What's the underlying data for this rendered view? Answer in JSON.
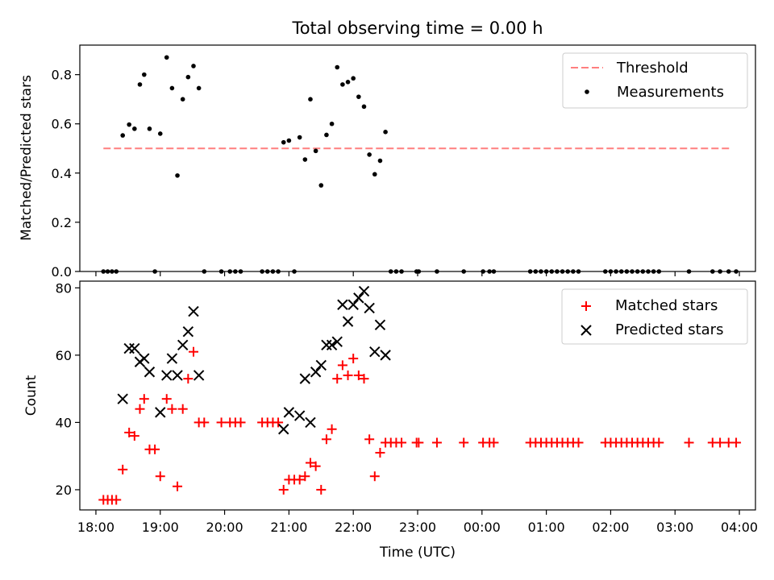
{
  "figure": {
    "title": "Total observing time = 0.00 h"
  },
  "chart_data": [
    {
      "type": "scatter",
      "title": "Total observing time = 0.00 h",
      "xlabel": "",
      "ylabel": "Matched/Predicted stars",
      "xlim": [
        "17:45",
        "04:15"
      ],
      "ylim": [
        0,
        0.92
      ],
      "yticks": [
        0.0,
        0.2,
        0.4,
        0.6,
        0.8
      ],
      "ytick_labels": [
        "0.0",
        "0.2",
        "0.4",
        "0.6",
        "0.8"
      ],
      "grid": false,
      "legend": "top-right",
      "series": [
        {
          "name": "Threshold",
          "kind": "dashed-line",
          "color": "#ff7f7f",
          "points": [
            [
              "18:07",
              0.5
            ],
            [
              "03:53",
              0.5
            ]
          ]
        },
        {
          "name": "Measurements",
          "kind": "dots",
          "color": "#000000",
          "points": [
            [
              "18:07",
              0.0
            ],
            [
              "18:11",
              0.0
            ],
            [
              "18:15",
              0.0
            ],
            [
              "18:19",
              0.0
            ],
            [
              "18:25",
              0.553
            ],
            [
              "18:31",
              0.597
            ],
            [
              "18:36",
              0.58
            ],
            [
              "18:41",
              0.76
            ],
            [
              "18:45",
              0.8
            ],
            [
              "18:50",
              0.58
            ],
            [
              "18:55",
              0.0
            ],
            [
              "19:00",
              0.56
            ],
            [
              "19:06",
              0.87
            ],
            [
              "19:11",
              0.745
            ],
            [
              "19:16",
              0.39
            ],
            [
              "19:21",
              0.7
            ],
            [
              "19:26",
              0.79
            ],
            [
              "19:31",
              0.835
            ],
            [
              "19:36",
              0.745
            ],
            [
              "19:41",
              0.0
            ],
            [
              "19:57",
              0.0
            ],
            [
              "20:05",
              0.0
            ],
            [
              "20:10",
              0.0
            ],
            [
              "20:15",
              0.0
            ],
            [
              "20:35",
              0.0
            ],
            [
              "20:40",
              0.0
            ],
            [
              "20:45",
              0.0
            ],
            [
              "20:50",
              0.0
            ],
            [
              "20:55",
              0.525
            ],
            [
              "21:00",
              0.532
            ],
            [
              "21:05",
              0.0
            ],
            [
              "21:10",
              0.545
            ],
            [
              "21:15",
              0.455
            ],
            [
              "21:20",
              0.7
            ],
            [
              "21:25",
              0.49
            ],
            [
              "21:30",
              0.35
            ],
            [
              "21:35",
              0.555
            ],
            [
              "21:40",
              0.6
            ],
            [
              "21:45",
              0.83
            ],
            [
              "21:50",
              0.76
            ],
            [
              "21:55",
              0.77
            ],
            [
              "22:00",
              0.785
            ],
            [
              "22:05",
              0.71
            ],
            [
              "22:10",
              0.67
            ],
            [
              "22:15",
              0.475
            ],
            [
              "22:20",
              0.395
            ],
            [
              "22:25",
              0.45
            ],
            [
              "22:30",
              0.567
            ],
            [
              "22:35",
              0.0
            ],
            [
              "22:40",
              0.0
            ],
            [
              "22:45",
              0.0
            ],
            [
              "22:59",
              0.0
            ],
            [
              "23:01",
              0.0
            ],
            [
              "23:18",
              0.0
            ],
            [
              "23:43",
              0.0
            ],
            [
              "00:01",
              0.0
            ],
            [
              "00:07",
              0.0
            ],
            [
              "00:11",
              0.0
            ],
            [
              "00:45",
              0.0
            ],
            [
              "00:50",
              0.0
            ],
            [
              "00:55",
              0.0
            ],
            [
              "01:00",
              0.0
            ],
            [
              "01:05",
              0.0
            ],
            [
              "01:10",
              0.0
            ],
            [
              "01:15",
              0.0
            ],
            [
              "01:20",
              0.0
            ],
            [
              "01:25",
              0.0
            ],
            [
              "01:30",
              0.0
            ],
            [
              "01:55",
              0.0
            ],
            [
              "02:00",
              0.0
            ],
            [
              "02:05",
              0.0
            ],
            [
              "02:10",
              0.0
            ],
            [
              "02:15",
              0.0
            ],
            [
              "02:20",
              0.0
            ],
            [
              "02:25",
              0.0
            ],
            [
              "02:30",
              0.0
            ],
            [
              "02:35",
              0.0
            ],
            [
              "02:40",
              0.0
            ],
            [
              "02:45",
              0.0
            ],
            [
              "03:13",
              0.0
            ],
            [
              "03:35",
              0.0
            ],
            [
              "03:42",
              0.0
            ],
            [
              "03:50",
              0.0
            ],
            [
              "03:57",
              0.0
            ]
          ]
        }
      ]
    },
    {
      "type": "scatter",
      "title": "",
      "xlabel": "Time (UTC)",
      "ylabel": "Count",
      "xlim": [
        "17:45",
        "04:15"
      ],
      "ylim": [
        14,
        82
      ],
      "yticks": [
        20,
        40,
        60,
        80
      ],
      "ytick_labels": [
        "20",
        "40",
        "60",
        "80"
      ],
      "xticks": [
        "18:00",
        "19:00",
        "20:00",
        "21:00",
        "22:00",
        "23:00",
        "00:00",
        "01:00",
        "02:00",
        "03:00",
        "04:00"
      ],
      "grid": false,
      "legend": "top-right",
      "series": [
        {
          "name": "Matched stars",
          "kind": "plus",
          "color": "#ff0000",
          "points": [
            [
              "18:07",
              17
            ],
            [
              "18:11",
              17
            ],
            [
              "18:15",
              17
            ],
            [
              "18:19",
              17
            ],
            [
              "18:25",
              26
            ],
            [
              "18:31",
              37
            ],
            [
              "18:36",
              36
            ],
            [
              "18:41",
              44
            ],
            [
              "18:45",
              47
            ],
            [
              "18:50",
              32
            ],
            [
              "18:55",
              32
            ],
            [
              "19:00",
              24
            ],
            [
              "19:06",
              47
            ],
            [
              "19:11",
              44
            ],
            [
              "19:16",
              21
            ],
            [
              "19:21",
              44
            ],
            [
              "19:26",
              53
            ],
            [
              "19:31",
              61
            ],
            [
              "19:36",
              40
            ],
            [
              "19:41",
              40
            ],
            [
              "19:57",
              40
            ],
            [
              "20:05",
              40
            ],
            [
              "20:10",
              40
            ],
            [
              "20:15",
              40
            ],
            [
              "20:35",
              40
            ],
            [
              "20:40",
              40
            ],
            [
              "20:45",
              40
            ],
            [
              "20:50",
              40
            ],
            [
              "20:55",
              20
            ],
            [
              "21:00",
              23
            ],
            [
              "21:05",
              23
            ],
            [
              "21:10",
              23
            ],
            [
              "21:15",
              24
            ],
            [
              "21:20",
              28
            ],
            [
              "21:25",
              27
            ],
            [
              "21:30",
              20
            ],
            [
              "21:35",
              35
            ],
            [
              "21:40",
              38
            ],
            [
              "21:45",
              53
            ],
            [
              "21:50",
              57
            ],
            [
              "21:55",
              54
            ],
            [
              "22:00",
              59
            ],
            [
              "22:05",
              54
            ],
            [
              "22:10",
              53
            ],
            [
              "22:15",
              35
            ],
            [
              "22:20",
              24
            ],
            [
              "22:25",
              31
            ],
            [
              "22:30",
              34
            ],
            [
              "22:35",
              34
            ],
            [
              "22:40",
              34
            ],
            [
              "22:45",
              34
            ],
            [
              "22:59",
              34
            ],
            [
              "23:01",
              34
            ],
            [
              "23:18",
              34
            ],
            [
              "23:43",
              34
            ],
            [
              "00:01",
              34
            ],
            [
              "00:07",
              34
            ],
            [
              "00:11",
              34
            ],
            [
              "00:45",
              34
            ],
            [
              "00:50",
              34
            ],
            [
              "00:55",
              34
            ],
            [
              "01:00",
              34
            ],
            [
              "01:05",
              34
            ],
            [
              "01:10",
              34
            ],
            [
              "01:15",
              34
            ],
            [
              "01:20",
              34
            ],
            [
              "01:25",
              34
            ],
            [
              "01:30",
              34
            ],
            [
              "01:55",
              34
            ],
            [
              "02:00",
              34
            ],
            [
              "02:05",
              34
            ],
            [
              "02:10",
              34
            ],
            [
              "02:15",
              34
            ],
            [
              "02:20",
              34
            ],
            [
              "02:25",
              34
            ],
            [
              "02:30",
              34
            ],
            [
              "02:35",
              34
            ],
            [
              "02:40",
              34
            ],
            [
              "02:45",
              34
            ],
            [
              "03:13",
              34
            ],
            [
              "03:35",
              34
            ],
            [
              "03:42",
              34
            ],
            [
              "03:50",
              34
            ],
            [
              "03:57",
              34
            ]
          ]
        },
        {
          "name": "Predicted stars",
          "kind": "cross",
          "color": "#000000",
          "points": [
            [
              "18:25",
              47
            ],
            [
              "18:31",
              62
            ],
            [
              "18:36",
              62
            ],
            [
              "18:41",
              58
            ],
            [
              "18:45",
              59
            ],
            [
              "18:50",
              55
            ],
            [
              "19:00",
              43
            ],
            [
              "19:06",
              54
            ],
            [
              "19:11",
              59
            ],
            [
              "19:16",
              54
            ],
            [
              "19:21",
              63
            ],
            [
              "19:26",
              67
            ],
            [
              "19:31",
              73
            ],
            [
              "19:36",
              54
            ],
            [
              "20:55",
              38
            ],
            [
              "21:00",
              43
            ],
            [
              "21:10",
              42
            ],
            [
              "21:15",
              53
            ],
            [
              "21:20",
              40
            ],
            [
              "21:25",
              55
            ],
            [
              "21:30",
              57
            ],
            [
              "21:35",
              63
            ],
            [
              "21:40",
              63
            ],
            [
              "21:45",
              64
            ],
            [
              "21:50",
              75
            ],
            [
              "21:55",
              70
            ],
            [
              "22:00",
              75
            ],
            [
              "22:05",
              77
            ],
            [
              "22:10",
              79
            ],
            [
              "22:15",
              74
            ],
            [
              "22:20",
              61
            ],
            [
              "22:25",
              69
            ],
            [
              "22:30",
              60
            ]
          ]
        }
      ]
    }
  ]
}
